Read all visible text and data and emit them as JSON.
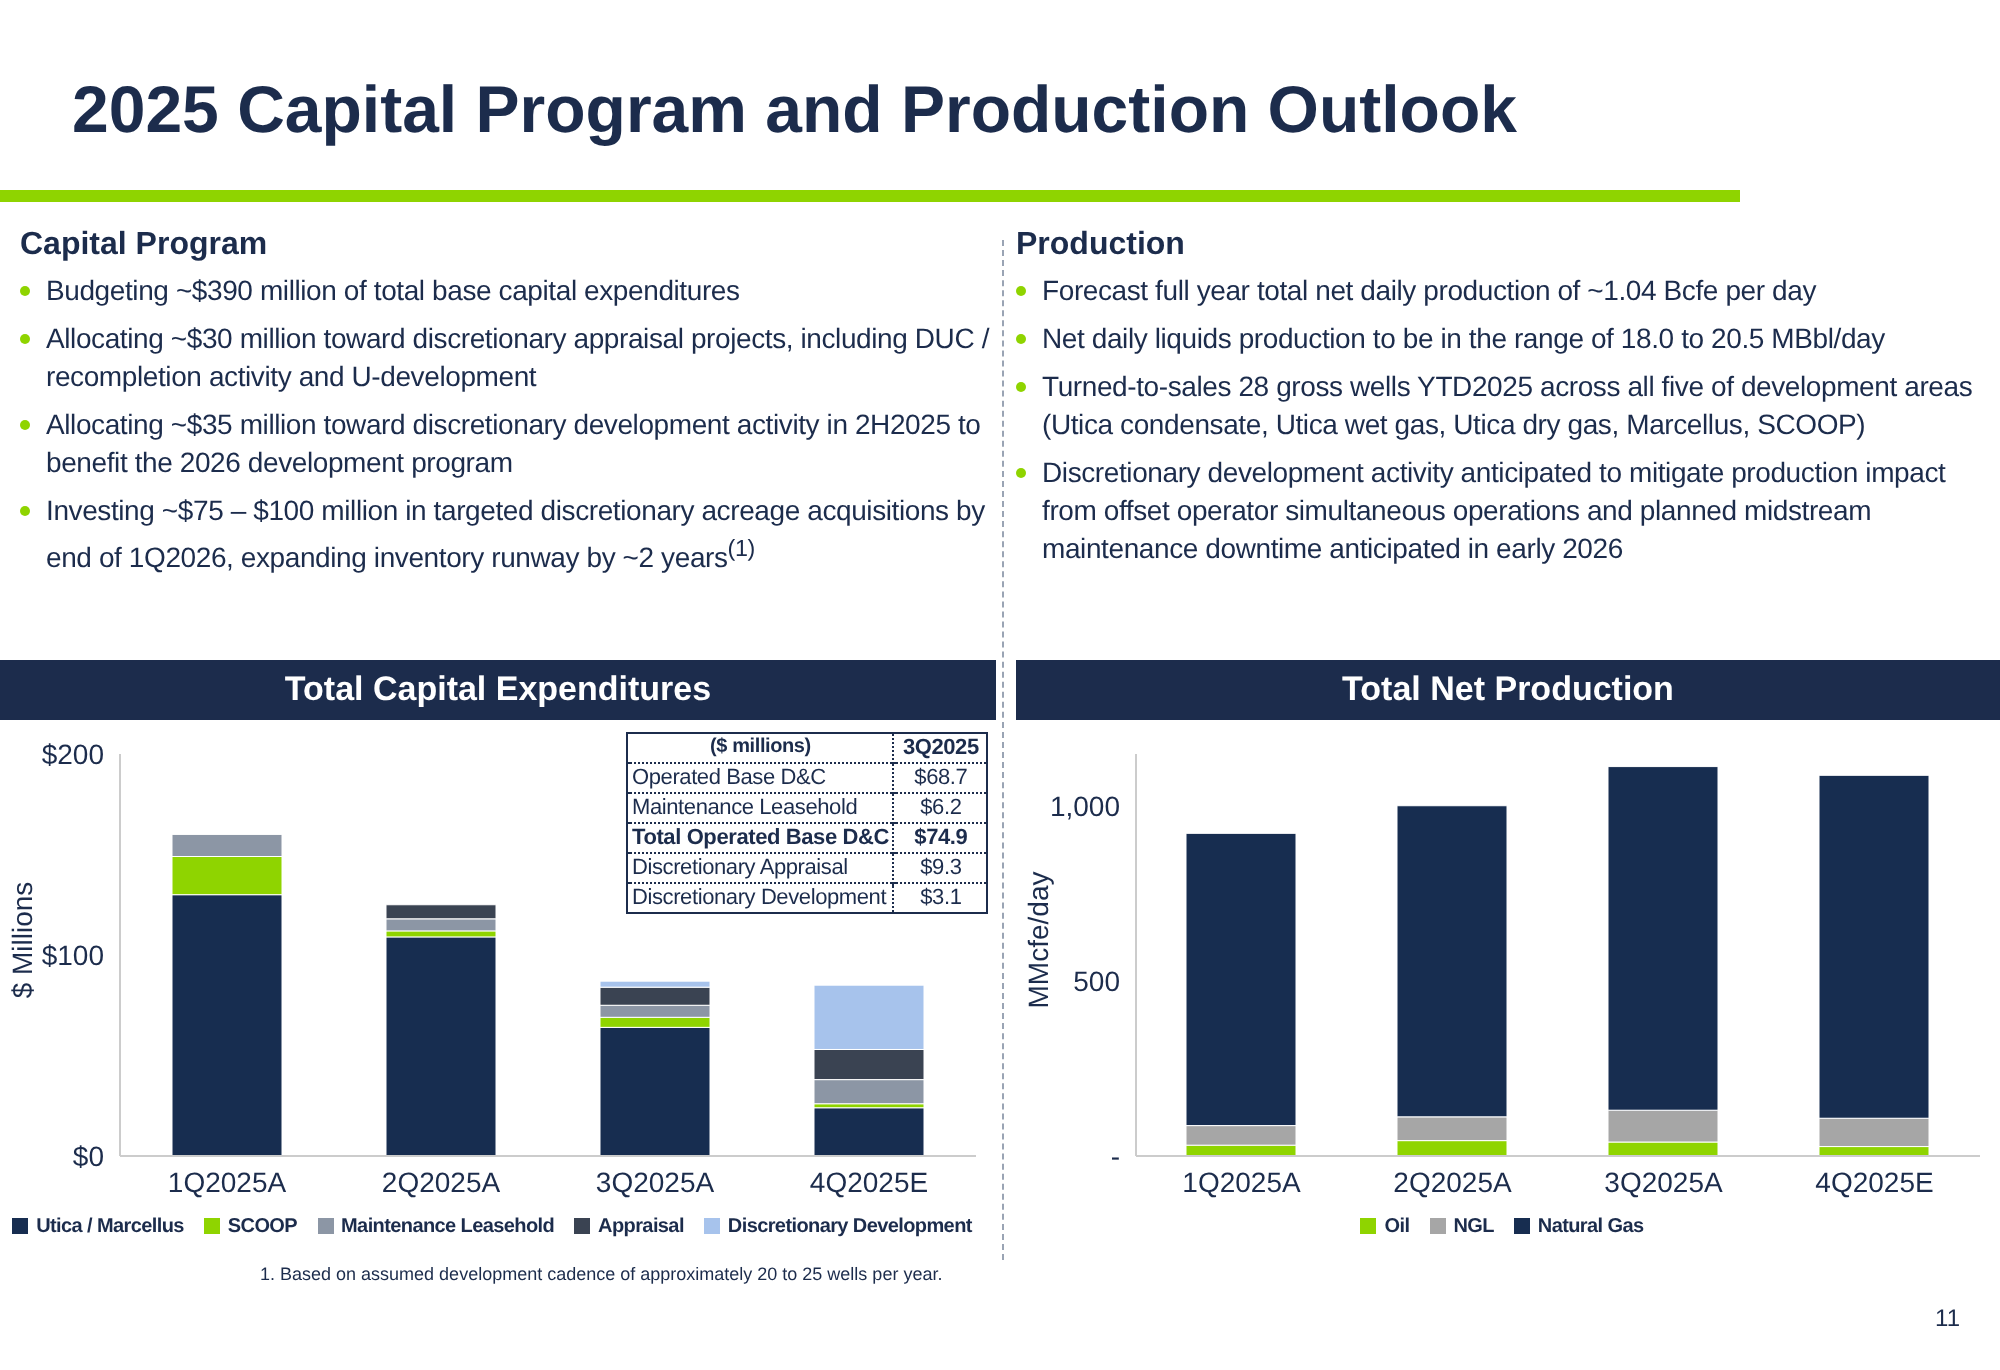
{
  "chart_data": [
    {
      "type": "bar",
      "title": "Total Capital Expenditures",
      "ylabel": "$ Millions",
      "stacked": true,
      "legend": "bottom",
      "categories": [
        "1Q2025A",
        "2Q2025A",
        "3Q2025A",
        "4Q2025E"
      ],
      "ylim": [
        0,
        200
      ],
      "yticks": [
        {
          "value": 0,
          "label": "$0"
        },
        {
          "value": 100,
          "label": "$100"
        },
        {
          "value": 200,
          "label": "$200"
        }
      ],
      "series": [
        {
          "name": "Utica / Marcellus",
          "color": "#172d50",
          "values": [
            130,
            109,
            64,
            24
          ]
        },
        {
          "name": "SCOOP",
          "color": "#8fd400",
          "values": [
            19,
            3,
            5,
            2
          ]
        },
        {
          "name": "Maintenance Leasehold",
          "color": "#8c96a5",
          "values": [
            11,
            6,
            6,
            12
          ]
        },
        {
          "name": "Appraisal",
          "color": "#3a4352",
          "values": [
            null,
            7,
            9,
            15
          ]
        },
        {
          "name": "Discretionary Development",
          "color": "#a7c3ec",
          "values": [
            null,
            null,
            3,
            32
          ]
        }
      ],
      "annotations": [
        "2025 Capital Program and Production Outlook",
        "Capital Program",
        "Budgeting ~$390 million of total base capital expenditures",
        "Allocating ~$30 million toward discretionary appraisal projects, including DUC / recompletion activity and U-development",
        "Allocating ~$35 million toward discretionary development activity in 2H2025 to benefit the 2026 development program",
        "Investing ~$75 – $100 million in targeted discretionary acreage acquisitions by end of 1Q2026, expanding inventory runway by ~2 years$^{(1)}$",
        "($ millions)",
        "3Q2025",
        "Operated Base D&C",
        "$68.7",
        "Maintenance Leasehold",
        "$6.2",
        "Total Operated Base D&C",
        "$74.9",
        "Discretionary Appraisal",
        "$9.3",
        "Discretionary Development",
        "$3.1",
        "1.     Based on assumed development cadence of approximately 20 to 25 wells per year."
      ]
    },
    {
      "type": "bar",
      "title": "Total Net Production",
      "ylabel": "MMcfe/day",
      "stacked": true,
      "legend": "bottom",
      "categories": [
        "1Q2025A",
        "2Q2025A",
        "3Q2025A",
        "4Q2025E"
      ],
      "ylim": [
        0,
        1150
      ],
      "yticks": [
        {
          "value": 0,
          "label": "-"
        },
        500,
        {
          "value": 1000,
          "label": "1,000"
        }
      ],
      "series": [
        {
          "name": "Oil",
          "color": "#8fd400",
          "values": [
            31,
            44,
            40,
            27
          ]
        },
        {
          "name": "NGL",
          "color": "#a6a6a6",
          "values": [
            56,
            68,
            91,
            81
          ]
        },
        {
          "name": "Natural Gas",
          "color": "#172d50",
          "values": [
            836,
            890,
            983,
            981
          ]
        }
      ],
      "annotations": [
        "Production",
        "Forecast full year total net daily production of ~1.04 Bcfe per day",
        "Net daily liquids production to be in the range of 18.0 to 20.5 MBbl/day",
        "Turned-to-sales 28 gross wells YTD2025 across all five of development areas (Utica condensate, Utica wet gas, Utica dry gas, Marcellus, SCOOP)",
        "Discretionary development activity anticipated to mitigate production impact from offset operator simultaneous operations and planned midstream maintenance downtime anticipated in early 2026",
        "11"
      ]
    }
  ]
}
